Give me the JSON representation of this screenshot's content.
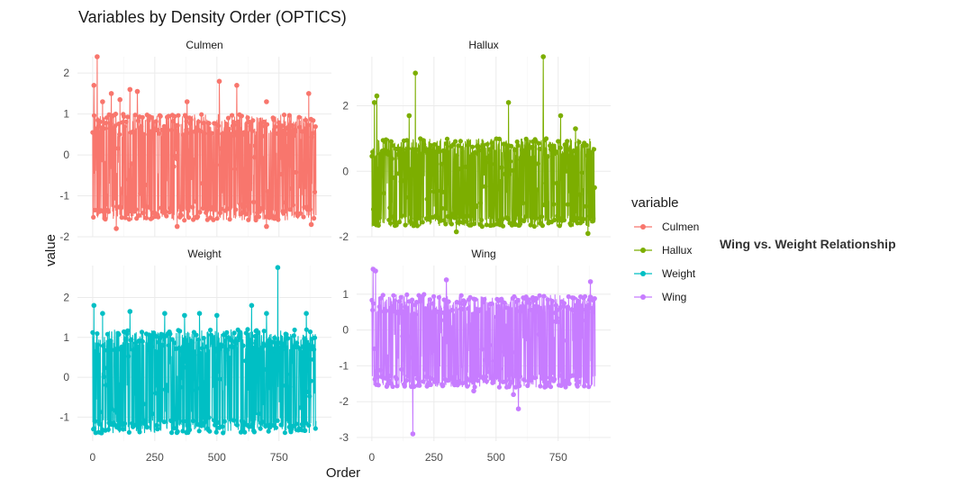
{
  "chart_data": {
    "type": "line",
    "title": "Variables by Density Order (OPTICS)",
    "xlabel": "Order",
    "ylabel": "value",
    "legend_title": "variable",
    "annotation": "Wing vs. Weight Relationship",
    "legend_position": "right",
    "grid": true,
    "x_range": [
      0,
      900
    ],
    "x_ticks": [
      0,
      250,
      500,
      750
    ],
    "series_style": "line with points",
    "panels": [
      {
        "name": "Culmen",
        "color": "#F8766D",
        "ylim": [
          -2,
          2.4
        ],
        "yticks": [
          -2,
          -1,
          0,
          1,
          2
        ],
        "base_mean": 0.0,
        "band": [
          -1.6,
          1.0
        ],
        "outliers": [
          [
            5,
            1.7
          ],
          [
            18,
            2.4
          ],
          [
            40,
            1.3
          ],
          [
            75,
            1.5
          ],
          [
            110,
            1.35
          ],
          [
            150,
            1.6
          ],
          [
            180,
            1.55
          ],
          [
            380,
            1.3
          ],
          [
            510,
            1.8
          ],
          [
            580,
            1.7
          ],
          [
            700,
            1.3
          ],
          [
            870,
            1.5
          ]
        ],
        "lows": [
          [
            95,
            -1.8
          ],
          [
            340,
            -1.75
          ],
          [
            700,
            -1.75
          ],
          [
            880,
            -1.7
          ]
        ]
      },
      {
        "name": "Hallux",
        "color": "#7CAE00",
        "ylim": [
          -2,
          3.5
        ],
        "yticks": [
          -2,
          0,
          2
        ],
        "base_mean": 0.0,
        "band": [
          -1.7,
          1.0
        ],
        "outliers": [
          [
            10,
            2.1
          ],
          [
            20,
            2.3
          ],
          [
            150,
            1.7
          ],
          [
            175,
            3.0
          ],
          [
            550,
            2.1
          ],
          [
            690,
            3.5
          ],
          [
            760,
            1.7
          ],
          [
            820,
            1.3
          ]
        ],
        "lows": [
          [
            340,
            -1.85
          ],
          [
            870,
            -1.9
          ]
        ]
      },
      {
        "name": "Weight",
        "color": "#00BFC4",
        "ylim": [
          -1.6,
          2.8
        ],
        "yticks": [
          -1,
          0,
          1,
          2
        ],
        "base_mean": 0.0,
        "band": [
          -1.4,
          1.2
        ],
        "outliers": [
          [
            5,
            1.8
          ],
          [
            40,
            1.6
          ],
          [
            150,
            1.65
          ],
          [
            290,
            1.6
          ],
          [
            370,
            1.55
          ],
          [
            430,
            1.6
          ],
          [
            500,
            1.55
          ],
          [
            640,
            1.8
          ],
          [
            700,
            1.6
          ],
          [
            745,
            2.75
          ],
          [
            860,
            1.6
          ]
        ],
        "lows": []
      },
      {
        "name": "Wing",
        "color": "#C77CFF",
        "ylim": [
          -3.1,
          1.8
        ],
        "yticks": [
          -3,
          -2,
          -1,
          0,
          1
        ],
        "base_mean": 0.0,
        "band": [
          -1.6,
          1.0
        ],
        "outliers": [
          [
            5,
            1.7
          ],
          [
            15,
            1.65
          ],
          [
            300,
            1.4
          ],
          [
            880,
            1.35
          ]
        ],
        "lows": [
          [
            165,
            -2.9
          ],
          [
            570,
            -1.8
          ],
          [
            590,
            -2.2
          ],
          [
            410,
            -1.7
          ]
        ]
      }
    ],
    "x_point_count": 900
  }
}
